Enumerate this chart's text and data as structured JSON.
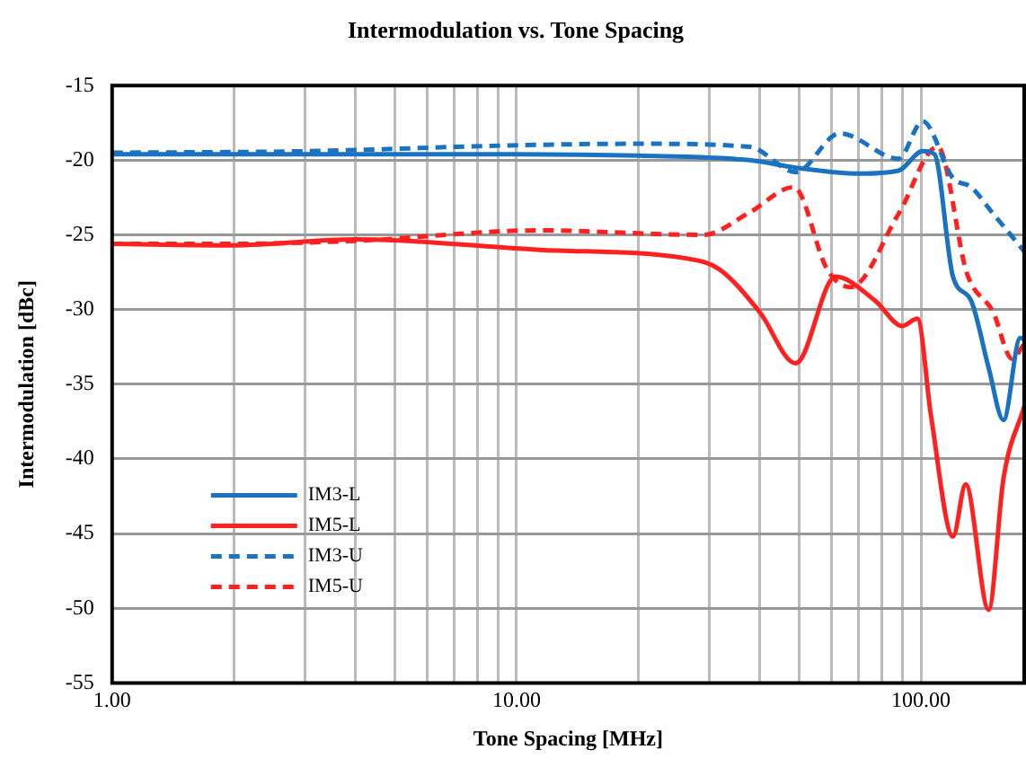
{
  "chart_data": {
    "type": "line",
    "title": "Intermodulation vs. Tone Spacing",
    "xlabel": "Tone Spacing [MHz]",
    "ylabel": "Intermodulation [dBc]",
    "log": "x",
    "grid": true,
    "legend": "bottom left",
    "marker": "none",
    "xlim": [
      1,
      180
    ],
    "ylim": [
      -55,
      -15
    ],
    "xticks": [
      {
        "value": 1,
        "label": "1.00"
      },
      {
        "value": 2,
        "label": null
      },
      {
        "value": 3,
        "label": null
      },
      {
        "value": 4,
        "label": null
      },
      {
        "value": 5,
        "label": null
      },
      {
        "value": 6,
        "label": null
      },
      {
        "value": 7,
        "label": null
      },
      {
        "value": 8,
        "label": null
      },
      {
        "value": 9,
        "label": null
      },
      {
        "value": 10,
        "label": "10.00"
      },
      {
        "value": 20,
        "label": null
      },
      {
        "value": 30,
        "label": null
      },
      {
        "value": 40,
        "label": null
      },
      {
        "value": 50,
        "label": null
      },
      {
        "value": 60,
        "label": null
      },
      {
        "value": 70,
        "label": null
      },
      {
        "value": 80,
        "label": null
      },
      {
        "value": 90,
        "label": null
      },
      {
        "value": 100,
        "label": "100.00"
      }
    ],
    "yticks": [
      -55,
      -50,
      -45,
      -40,
      -35,
      -30,
      -25,
      -20,
      -15
    ],
    "series": [
      {
        "name": "IM3-L",
        "color": "#1a73c0",
        "line_style": "solid",
        "x": [
          1,
          2,
          5,
          10,
          20,
          37.7,
          49,
          70,
          88,
          101,
          108,
          120,
          133,
          147,
          160,
          176,
          180
        ],
        "values": [
          -19.6,
          -19.6,
          -19.6,
          -19.6,
          -19.7,
          -20.0,
          -20.5,
          -20.9,
          -20.7,
          -19.4,
          -19.6,
          -27.8,
          -29.4,
          -33.9,
          -37.4,
          -31.9,
          -32
        ]
      },
      {
        "name": "IM5-L",
        "color": "#ff2020",
        "line_style": "solid",
        "x": [
          1,
          2,
          4,
          11.4,
          26.6,
          31.7,
          40,
          49,
          61.5,
          77,
          90,
          98,
          106,
          120,
          129,
          147,
          160,
          180
        ],
        "values": [
          -25.6,
          -25.7,
          -25.3,
          -26.0,
          -26.6,
          -27.3,
          -30.2,
          -33.6,
          -27.8,
          -29.4,
          -31.1,
          -30.6,
          -37.2,
          -45.2,
          -41.7,
          -50.1,
          -41.3,
          -36.5
        ]
      },
      {
        "name": "IM3-U",
        "color": "#1a73c0",
        "line_style": "dashed",
        "x": [
          1,
          3,
          10,
          20,
          37.7,
          49,
          63,
          88,
          101,
          120,
          133,
          150,
          180
        ],
        "values": [
          -19.5,
          -19.4,
          -19.0,
          -18.9,
          -19.1,
          -20.8,
          -18.2,
          -19.9,
          -17.4,
          -21.2,
          -21.8,
          -23.5,
          -26.1
        ]
      },
      {
        "name": "IM5-U",
        "color": "#ff2020",
        "line_style": "dashed",
        "x": [
          1,
          2,
          4,
          11.4,
          29,
          37.7,
          48.5,
          58.6,
          67,
          88,
          110,
          130,
          151,
          168,
          180
        ],
        "values": [
          -25.6,
          -25.6,
          -25.4,
          -24.7,
          -25.0,
          -23.5,
          -21.8,
          -27.3,
          -28.5,
          -23.6,
          -19.1,
          -27.6,
          -30.2,
          -33.3,
          -32.3
        ]
      }
    ]
  }
}
